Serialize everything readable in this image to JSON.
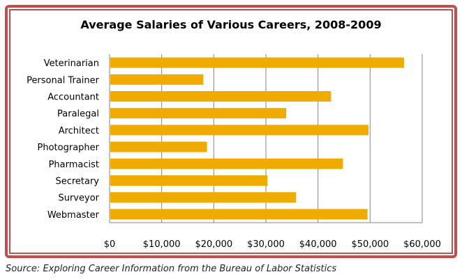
{
  "chart_data": {
    "type": "bar",
    "orientation": "horizontal",
    "title": "Average Salaries of Various Careers, 2008-2009",
    "categories": [
      "Veterinarian",
      "Personal Trainer",
      "Accountant",
      "Paralegal",
      "Architect",
      "Photographer",
      "Pharmacist",
      "Secretary",
      "Surveyor",
      "Webmaster"
    ],
    "values": [
      56500,
      18000,
      42500,
      33900,
      49700,
      18700,
      44800,
      30300,
      35800,
      49500
    ],
    "xlim": [
      0,
      60000
    ],
    "xticks": [
      "$0",
      "$10,000",
      "$20,000",
      "$30,000",
      "$40,000",
      "$50,000",
      "$60,000"
    ],
    "grid": true,
    "bar_color": "#f0ab00",
    "source": "Source: Exploring Career Information from the Bureau of Labor Statistics"
  }
}
